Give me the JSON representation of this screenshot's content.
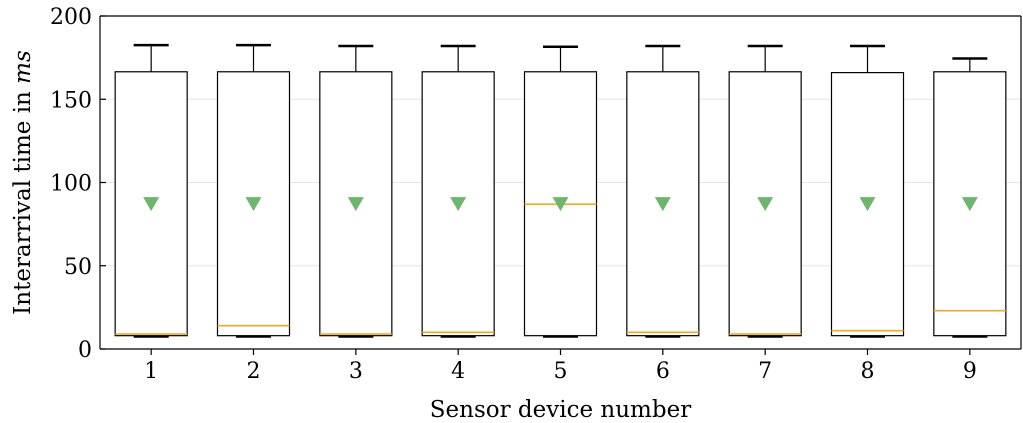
{
  "chart_data": {
    "type": "box",
    "xlabel": "Sensor device number",
    "ylabel_text": "Interarrival time in ",
    "ylabel_unit": "ms",
    "ylim": [
      0,
      200
    ],
    "yticks": [
      0,
      50,
      100,
      150,
      200
    ],
    "grid": "horizontal",
    "categories": [
      "1",
      "2",
      "3",
      "4",
      "5",
      "6",
      "7",
      "8",
      "9"
    ],
    "boxes": [
      {
        "category": "1",
        "whisker_low": 7.5,
        "q1": 8.0,
        "median": 9.0,
        "q3": 166.5,
        "whisker_high": 182.5,
        "mean": 87.0
      },
      {
        "category": "2",
        "whisker_low": 7.5,
        "q1": 8.0,
        "median": 14.0,
        "q3": 166.5,
        "whisker_high": 182.5,
        "mean": 87.0
      },
      {
        "category": "3",
        "whisker_low": 7.5,
        "q1": 8.0,
        "median": 9.0,
        "q3": 166.5,
        "whisker_high": 182.0,
        "mean": 87.0
      },
      {
        "category": "4",
        "whisker_low": 7.5,
        "q1": 8.0,
        "median": 10.0,
        "q3": 166.5,
        "whisker_high": 182.0,
        "mean": 87.0
      },
      {
        "category": "5",
        "whisker_low": 7.5,
        "q1": 8.0,
        "median": 87.0,
        "q3": 166.5,
        "whisker_high": 181.5,
        "mean": 87.0
      },
      {
        "category": "6",
        "whisker_low": 7.5,
        "q1": 8.0,
        "median": 10.0,
        "q3": 166.5,
        "whisker_high": 182.0,
        "mean": 87.0
      },
      {
        "category": "7",
        "whisker_low": 7.5,
        "q1": 8.0,
        "median": 9.0,
        "q3": 166.5,
        "whisker_high": 182.0,
        "mean": 87.0
      },
      {
        "category": "8",
        "whisker_low": 7.5,
        "q1": 8.0,
        "median": 11.0,
        "q3": 166.0,
        "whisker_high": 182.0,
        "mean": 87.0
      },
      {
        "category": "9",
        "whisker_low": 7.5,
        "q1": 8.0,
        "median": 23.0,
        "q3": 166.5,
        "whisker_high": 174.5,
        "mean": 87.0
      }
    ],
    "colors": {
      "median": "#f5a623",
      "mean_marker": "#6fb56f",
      "grid": "#e6e6e6",
      "box_edge": "#000000"
    }
  }
}
